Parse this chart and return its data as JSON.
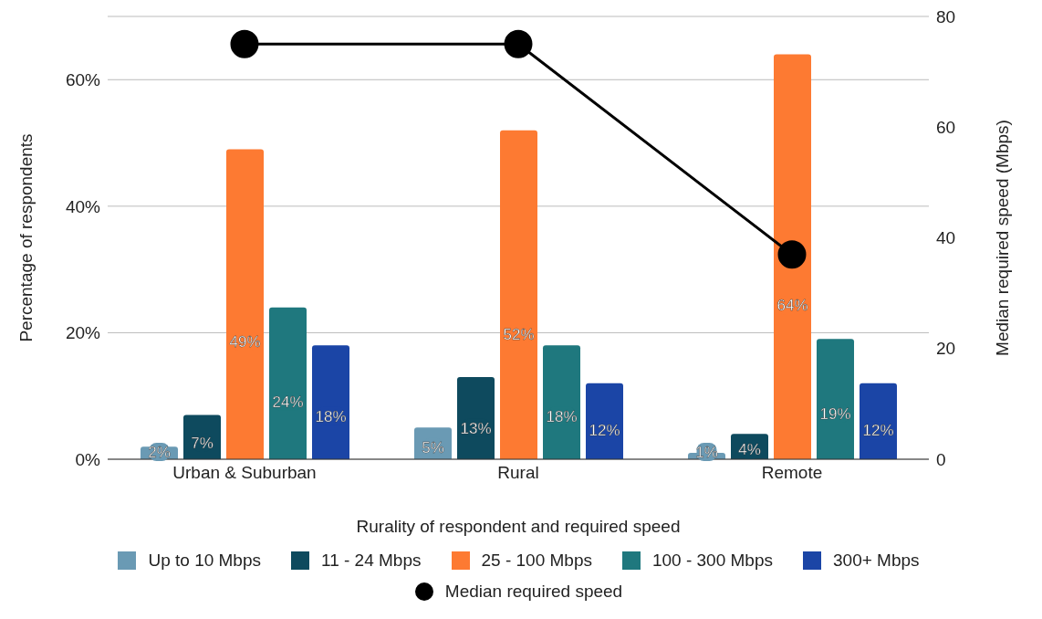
{
  "chart_data": {
    "type": "bar",
    "xlabel": "Rurality of respondent and required speed",
    "ylabel": "Percentage of respondents",
    "y2label": "Median required speed (Mbps)",
    "categories": [
      "Urban & Suburban",
      "Rural",
      "Remote"
    ],
    "series": [
      {
        "name": "Up to 10 Mbps",
        "color": "#6a9ab4",
        "values": [
          2,
          5,
          1
        ],
        "value_labels": [
          "2%",
          "5%",
          "1%"
        ]
      },
      {
        "name": "11 - 24 Mbps",
        "color": "#0e4a5e",
        "values": [
          7,
          13,
          4
        ],
        "value_labels": [
          "7%",
          "13%",
          "4%"
        ]
      },
      {
        "name": "25 - 100 Mbps",
        "color": "#fd7a32",
        "values": [
          49,
          52,
          64
        ],
        "value_labels": [
          "49%",
          "52%",
          "64%"
        ]
      },
      {
        "name": "100 - 300 Mbps",
        "color": "#1f787e",
        "values": [
          24,
          18,
          19
        ],
        "value_labels": [
          "24%",
          "18%",
          "19%"
        ]
      },
      {
        "name": "300+ Mbps",
        "color": "#1b45a6",
        "values": [
          18,
          12,
          12
        ],
        "value_labels": [
          "18%",
          "12%",
          "12%"
        ]
      },
      {
        "name": "Median required speed",
        "type": "line",
        "axis": "y2",
        "color": "#000000",
        "marker": "circle",
        "values": [
          75,
          75,
          37
        ]
      }
    ],
    "ylim": [
      0,
      70
    ],
    "yticks": [
      {
        "value": 0,
        "label": "0%"
      },
      {
        "value": 20,
        "label": "20%"
      },
      {
        "value": 40,
        "label": "40%"
      },
      {
        "value": 60,
        "label": "60%"
      }
    ],
    "y2lim": [
      0,
      80
    ],
    "y2ticks": [
      0,
      20,
      40,
      60,
      80
    ],
    "grid": "y",
    "legend": "bottom"
  }
}
